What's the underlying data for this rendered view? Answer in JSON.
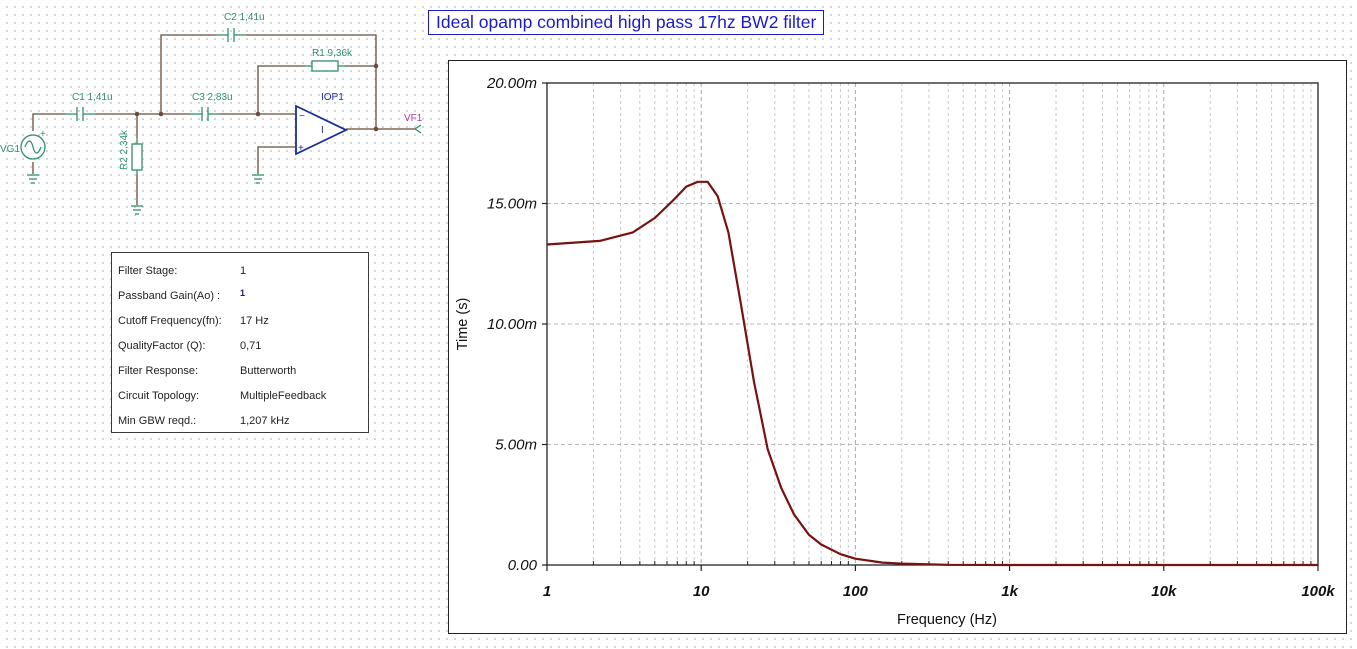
{
  "window_title": "Ideal opamp combined high pass 17hz BW2 filter",
  "schematic": {
    "components": {
      "vg1": "VG1",
      "c1": "C1 1,41u",
      "c2": "C2 1,41u",
      "c3": "C3 2,83u",
      "r1": "R1 9,36k",
      "r2": "R2 2,34k",
      "iop1": "IOP1",
      "vf1": "VF1"
    },
    "colors": {
      "wire": "#6b4c3a",
      "component": "#2f8f6a",
      "opamp": "#1a2e9a",
      "probe": "#b03aa0"
    }
  },
  "parameters": {
    "rows": [
      {
        "label": "Filter Stage:",
        "value": "1"
      },
      {
        "label": "Passband Gain(Ao) :",
        "value": "1"
      },
      {
        "label": "Cutoff Frequency(fn):",
        "value": "17 Hz"
      },
      {
        "label": "QualityFactor (Q):",
        "value": "0,71"
      },
      {
        "label": "Filter Response:",
        "value": "Butterworth"
      },
      {
        "label": "Circuit Topology:",
        "value": "MultipleFeedback"
      },
      {
        "label": "Min GBW reqd.:",
        "value": "1,207 kHz"
      }
    ]
  },
  "chart_data": {
    "type": "line",
    "title": "",
    "xlabel": "Frequency (Hz)",
    "ylabel": "Time (s)",
    "x_scale": "log",
    "xlim": [
      1,
      100000
    ],
    "ylim": [
      0,
      0.02
    ],
    "grid": true,
    "x_tick_labels": [
      "1",
      "10",
      "100",
      "1k",
      "10k",
      "100k"
    ],
    "y_tick_labels": [
      "0.00",
      "5.00m",
      "10.00m",
      "15.00m",
      "20.00m"
    ],
    "line_color": "#7a1010",
    "series": [
      {
        "name": "",
        "x": [
          1,
          2.2,
          3.6,
          5,
          6.5,
          8,
          9.5,
          11,
          12.8,
          15,
          18,
          22,
          27,
          33,
          40,
          50,
          60,
          80,
          100,
          150,
          200,
          400,
          1000,
          10000,
          100000
        ],
        "y": [
          0.0133,
          0.01345,
          0.0138,
          0.0144,
          0.0151,
          0.0157,
          0.0159,
          0.0159,
          0.0153,
          0.0138,
          0.0109,
          0.0076,
          0.0048,
          0.0032,
          0.0021,
          0.00125,
          0.00085,
          0.00045,
          0.00026,
          0.0001,
          6e-05,
          1e-05,
          0,
          0,
          0
        ]
      }
    ]
  }
}
